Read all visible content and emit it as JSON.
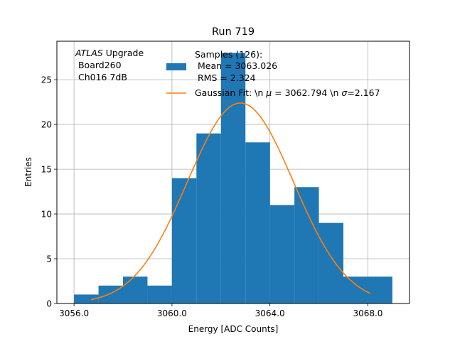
{
  "chart_data": {
    "type": "bar",
    "title": "Run 719",
    "xlabel": "Energy [ADC Counts]",
    "ylabel": "Entries",
    "xlim": [
      3055.3,
      3069.7
    ],
    "ylim": [
      0,
      29.3
    ],
    "x_ticks": [
      {
        "value": 3056,
        "label": "3056.0"
      },
      {
        "value": 3060,
        "label": "3060.0"
      },
      {
        "value": 3064,
        "label": "3064.0"
      },
      {
        "value": 3068,
        "label": "3068.0"
      }
    ],
    "y_ticks": [
      {
        "value": 0,
        "label": "0"
      },
      {
        "value": 5,
        "label": "5"
      },
      {
        "value": 10,
        "label": "10"
      },
      {
        "value": 15,
        "label": "15"
      },
      {
        "value": 20,
        "label": "20"
      },
      {
        "value": 25,
        "label": "25"
      }
    ],
    "grid": true,
    "histogram": {
      "name": "Samples (126):\n Mean = 3063.026\n RMS = 2.324",
      "color": "#1f77b4",
      "bin_edges": [
        3056,
        3057,
        3058,
        3059,
        3060,
        3061,
        3062,
        3063,
        3064,
        3065,
        3066,
        3067,
        3068,
        3069
      ],
      "counts": [
        1,
        2,
        3,
        2,
        14,
        19,
        28,
        18,
        11,
        13,
        9,
        3,
        3
      ]
    },
    "fit": {
      "name": "Gaussian Fit: \\n $\\mu$ = 3062.794 \\n $\\sigma$=2.167",
      "color": "#ff7f0e",
      "mu": 3062.794,
      "sigma": 2.167,
      "amplitude": 22.4,
      "x_range": [
        3056.7,
        3068.1
      ]
    },
    "annotation": {
      "line1_italic": "ATLAS",
      "line1_rest": " Upgrade",
      "line2": " Board260",
      "line3": " Ch016 7dB"
    },
    "legend": {
      "placement": "top-center",
      "hist_lines": [
        "Samples (126):",
        " Mean = 3063.026",
        " RMS = 2.324"
      ],
      "fit_label_prefix": "Gaussian Fit: \\n ",
      "fit_mu_symbol": "μ",
      "fit_label_mid": " = 3062.794 \\n ",
      "fit_sigma_symbol": "σ",
      "fit_label_suffix": "=2.167"
    }
  }
}
